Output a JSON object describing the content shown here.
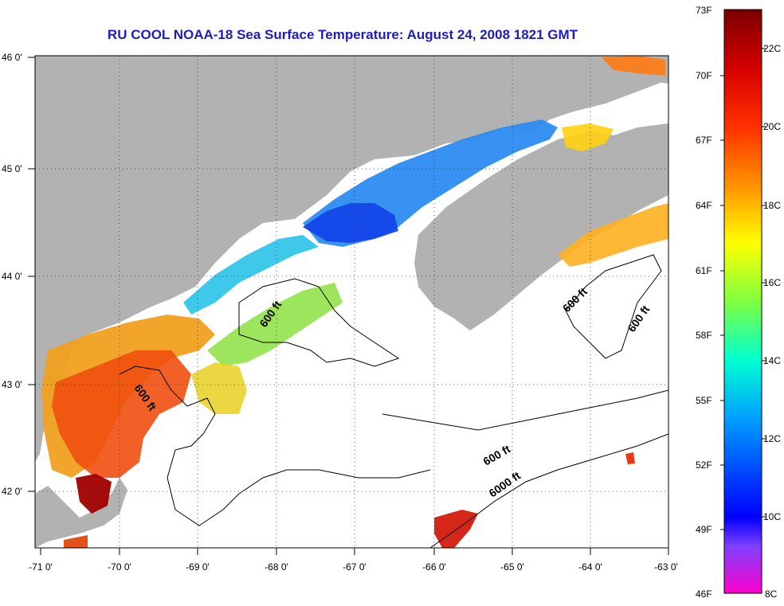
{
  "title": "RU COOL  NOAA-18  Sea Surface Temperature:  August 24, 2008 1821 GMT",
  "map": {
    "lon_labels": [
      "-71 0'",
      "-70 0'",
      "-69 0'",
      "-68 0'",
      "-67 0'",
      "-66 0'",
      "-65 0'",
      "-64 0'",
      "-63 0'"
    ],
    "lat_labels": [
      "46 0'",
      "45 0'",
      "44 0'",
      "43 0'",
      "42 0'"
    ],
    "contour_labels": [
      "600 ft",
      "600 ft",
      "600 ft",
      "600 ft",
      "600 ft",
      "6000 ft"
    ],
    "colors": {
      "land": "#b2b2b2",
      "ocean_nodata": "#ffffff",
      "title": "#1d1dbf"
    }
  },
  "colorbar": {
    "fahrenheit_labels": [
      "73F",
      "70F",
      "67F",
      "64F",
      "61F",
      "58F",
      "55F",
      "52F",
      "49F",
      "46F"
    ],
    "celsius_labels": [
      "22C",
      "20C",
      "18C",
      "16C",
      "14C",
      "12C",
      "10C",
      "8C"
    ]
  }
}
